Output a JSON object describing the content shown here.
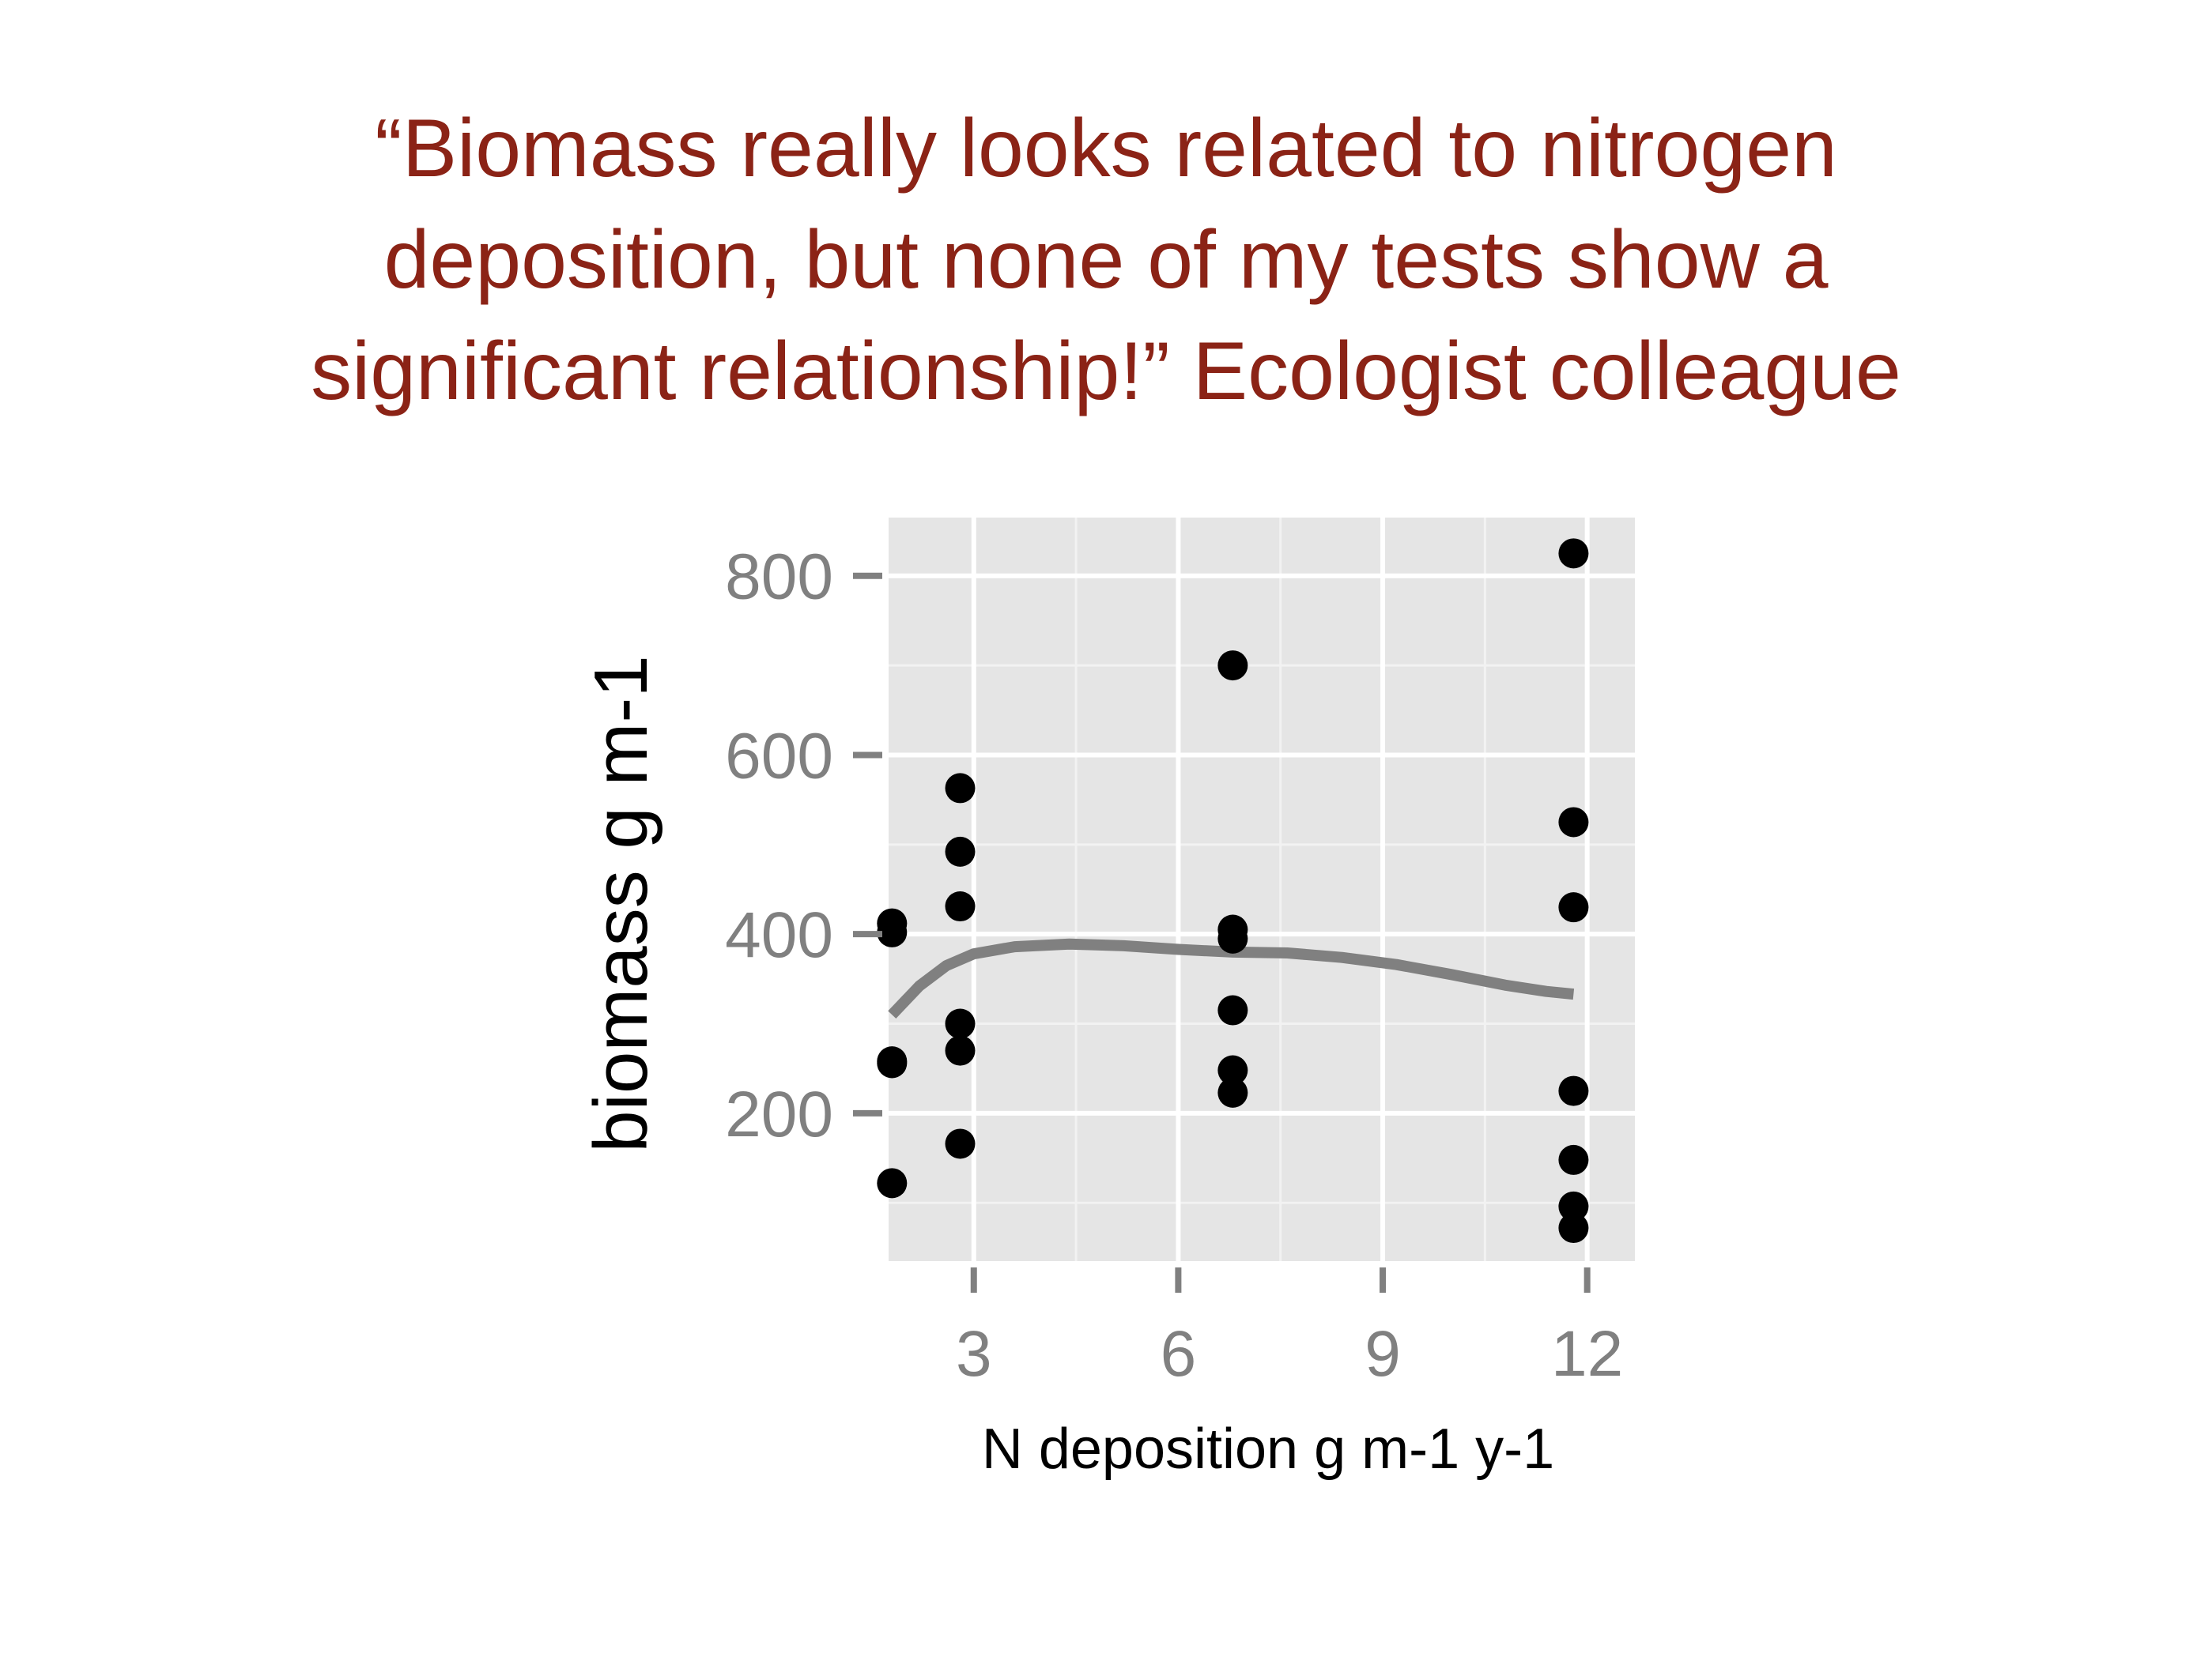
{
  "slide": {
    "title_lines": [
      "“Biomass really looks related to nitrogen",
      "deposition, but none of my tests show a",
      "significant relationship!” Ecologist colleague"
    ],
    "title_color": "#8b2316"
  },
  "chart_data": {
    "type": "scatter",
    "xlabel": "N deposition g m-1 y-1",
    "ylabel": "biomass g m-1",
    "x_ticks": [
      3,
      6,
      9,
      12
    ],
    "y_ticks": [
      200,
      400,
      600,
      800
    ],
    "xlim": [
      1.75,
      12.7
    ],
    "ylim": [
      35,
      865
    ],
    "grid": true,
    "panel_background": "#e5e5e5",
    "point_color": "#000000",
    "smooth_color": "#808080",
    "points": [
      {
        "x": 1.8,
        "y": 412
      },
      {
        "x": 1.8,
        "y": 402
      },
      {
        "x": 1.8,
        "y": 258
      },
      {
        "x": 1.8,
        "y": 256
      },
      {
        "x": 1.8,
        "y": 122
      },
      {
        "x": 2.8,
        "y": 563
      },
      {
        "x": 2.8,
        "y": 492
      },
      {
        "x": 2.8,
        "y": 431
      },
      {
        "x": 2.8,
        "y": 300
      },
      {
        "x": 2.8,
        "y": 270
      },
      {
        "x": 2.8,
        "y": 166
      },
      {
        "x": 6.8,
        "y": 700
      },
      {
        "x": 6.8,
        "y": 405
      },
      {
        "x": 6.8,
        "y": 395
      },
      {
        "x": 6.8,
        "y": 315
      },
      {
        "x": 6.8,
        "y": 248
      },
      {
        "x": 6.8,
        "y": 223
      },
      {
        "x": 11.8,
        "y": 825
      },
      {
        "x": 11.8,
        "y": 525
      },
      {
        "x": 11.8,
        "y": 430
      },
      {
        "x": 11.8,
        "y": 225
      },
      {
        "x": 11.8,
        "y": 148
      },
      {
        "x": 11.8,
        "y": 96
      },
      {
        "x": 11.8,
        "y": 72
      }
    ],
    "smooth": [
      {
        "x": 1.8,
        "y": 310
      },
      {
        "x": 2.2,
        "y": 342
      },
      {
        "x": 2.6,
        "y": 365
      },
      {
        "x": 3.0,
        "y": 378
      },
      {
        "x": 3.6,
        "y": 386
      },
      {
        "x": 4.4,
        "y": 389
      },
      {
        "x": 5.2,
        "y": 387
      },
      {
        "x": 6.0,
        "y": 383
      },
      {
        "x": 6.8,
        "y": 380
      },
      {
        "x": 7.6,
        "y": 379
      },
      {
        "x": 8.4,
        "y": 374
      },
      {
        "x": 9.2,
        "y": 366
      },
      {
        "x": 10.0,
        "y": 355
      },
      {
        "x": 10.8,
        "y": 343
      },
      {
        "x": 11.4,
        "y": 336
      },
      {
        "x": 11.8,
        "y": 333
      }
    ]
  }
}
